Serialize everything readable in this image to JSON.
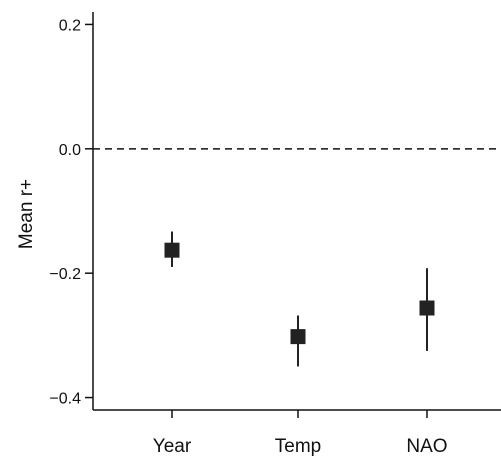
{
  "chart_data": {
    "type": "scatter",
    "categories": [
      "Year",
      "Temp",
      "NAO"
    ],
    "series": [
      {
        "values": [
          -0.163,
          -0.302,
          -0.256
        ],
        "ci_low": [
          -0.19,
          -0.35,
          -0.325
        ],
        "ci_high": [
          -0.133,
          -0.268,
          -0.192
        ]
      }
    ],
    "ylabel": "Mean r+",
    "xlabel": "",
    "ylim": [
      -0.42,
      0.22
    ],
    "yticks": [
      {
        "value": 0.2,
        "label": "0.2"
      },
      {
        "value": 0.0,
        "label": "0.0"
      },
      {
        "value": -0.2,
        "label": "−0.2"
      },
      {
        "value": -0.4,
        "label": "−0.4"
      }
    ],
    "reference_line": {
      "value": 0.0,
      "style": "dashed"
    },
    "grid": false,
    "marker": "square",
    "color": "#222222"
  }
}
